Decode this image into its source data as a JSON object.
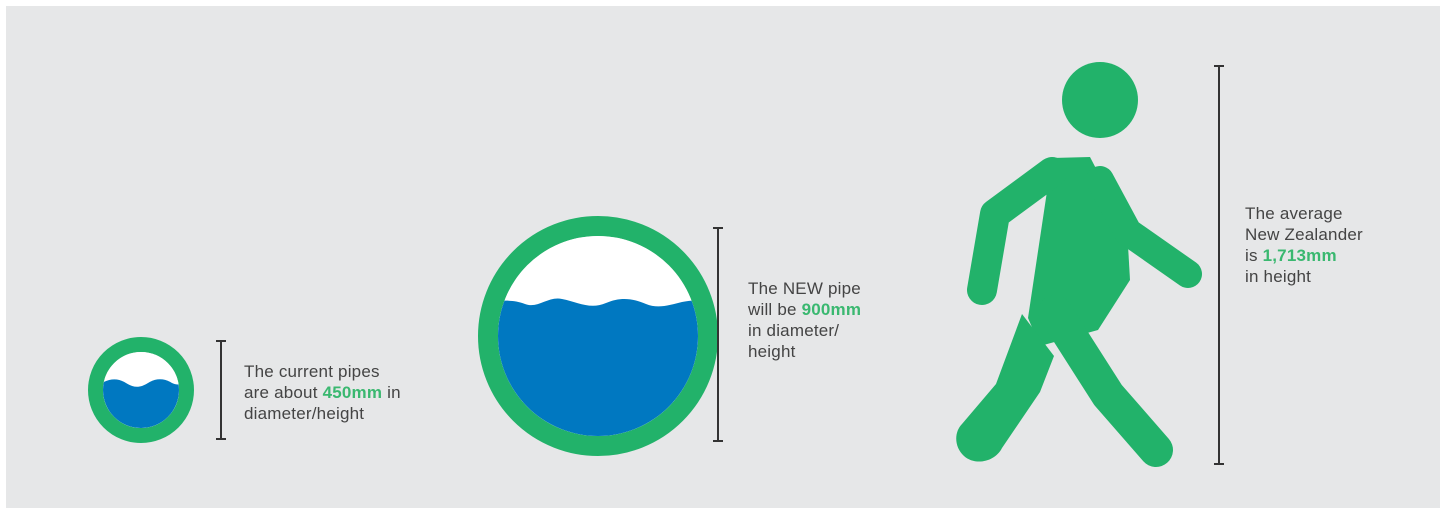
{
  "colors": {
    "background": "#e6e7e8",
    "pipe_ring": "#22b26a",
    "water": "#0078c1",
    "person": "#22b26a",
    "highlight_text": "#3ab870",
    "body_text": "#444444",
    "scale_bar": "#333333"
  },
  "icons": {
    "small_pipe": "pipe-cross-section-icon",
    "large_pipe": "pipe-cross-section-icon",
    "person": "walking-person-icon"
  },
  "captions": {
    "current_pipe": {
      "line1": "The current pipes",
      "line2_before": "are about ",
      "line2_value": "450mm",
      "line2_after": " in",
      "line3": "diameter/height"
    },
    "new_pipe": {
      "line1": "The NEW pipe",
      "line2_before": "will be ",
      "line2_value": "900mm",
      "line3": "in diameter/",
      "line4": "height"
    },
    "person": {
      "line1": "The average",
      "line2": "New Zealander",
      "line3_before": "is ",
      "line3_value": "1,713mm",
      "line4": "in height"
    }
  }
}
